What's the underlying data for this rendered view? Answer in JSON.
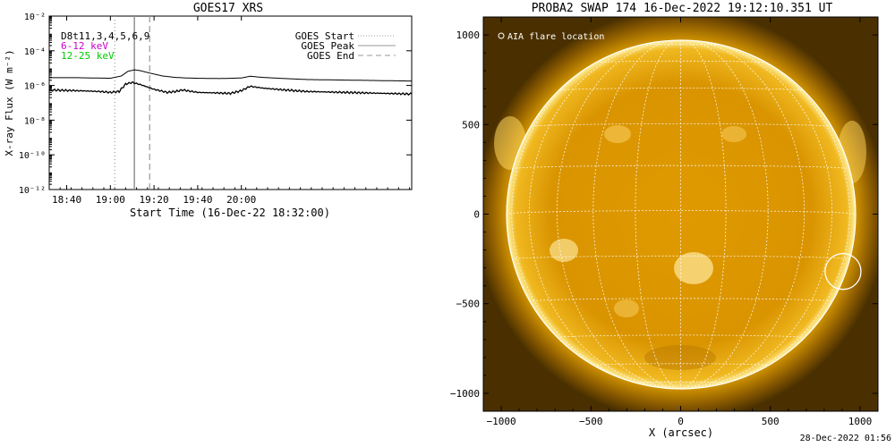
{
  "goes_panel": {
    "title": "GOES17 XRS",
    "ylabel": "X-ray Flux (W m⁻²)",
    "xlabel": "Start Time (16-Dec-22 18:32:00)",
    "instrument_label": "D8t11,3,4,5,6,9",
    "channel_labels": [
      "6-12 keV",
      "12-25 keV"
    ],
    "legend": [
      "GOES Start",
      "GOES Peak",
      "GOES End"
    ],
    "colors": {
      "channel_6_12": "#cc00cc",
      "channel_12_25": "#00cc00",
      "curves": "#000000"
    }
  },
  "swap_panel": {
    "title": "PROBA2 SWAP 174 16-Dec-2022 19:12:10.351 UT",
    "xlabel": "X (arcsec)",
    "flare_legend": "AIA flare location",
    "colors": {
      "sun_core": "#e8a800",
      "corona": "#7a4a00",
      "grid": "#ffffff"
    }
  },
  "footer": "28-Dec-2022 01:56",
  "chart_data": [
    {
      "type": "line",
      "title": "GOES17 XRS",
      "xlabel": "Start Time (16-Dec-22 18:32:00)",
      "ylabel": "X-ray Flux (W m⁻²)",
      "y_scale": "log",
      "xlim": [
        "18:32",
        "21:18"
      ],
      "ylim": [
        1e-12,
        0.01
      ],
      "x_ticks": [
        "18:40",
        "19:00",
        "19:20",
        "19:40",
        "20:00"
      ],
      "y_ticks": [
        "10⁻¹²",
        "10⁻¹⁰",
        "10⁻⁸",
        "10⁻⁶",
        "10⁻⁴",
        "10⁻²"
      ],
      "vertical_lines": {
        "GOES Start": "19:02",
        "GOES Peak": "19:11",
        "GOES End": "19:18"
      },
      "legend_position": "top-right",
      "series": [
        {
          "name": "6-12 keV",
          "x": [
            "18:32",
            "18:45",
            "19:00",
            "19:05",
            "19:08",
            "19:11",
            "19:14",
            "19:18",
            "19:24",
            "19:30",
            "19:35",
            "19:40",
            "19:50",
            "20:00",
            "20:04",
            "20:10",
            "20:20",
            "20:30",
            "21:18"
          ],
          "y": [
            2.8e-06,
            2.8e-06,
            2.6e-06,
            3.5e-06,
            6.5e-06,
            8e-06,
            7e-06,
            5.2e-06,
            3.5e-06,
            2.9e-06,
            2.7e-06,
            2.6e-06,
            2.5e-06,
            2.7e-06,
            3.4e-06,
            2.9e-06,
            2.5e-06,
            2.2e-06,
            1.8e-06
          ]
        },
        {
          "name": "12-25 keV",
          "x": [
            "18:32",
            "18:45",
            "18:55",
            "19:00",
            "19:04",
            "19:07",
            "19:10",
            "19:14",
            "19:20",
            "19:26",
            "19:30",
            "19:33",
            "19:40",
            "19:55",
            "20:00",
            "20:04",
            "20:10",
            "20:20",
            "20:30",
            "21:18"
          ],
          "y": [
            5.5e-07,
            5e-07,
            4.5e-07,
            4e-07,
            4.5e-07,
            1.2e-06,
            1.5e-06,
            1.1e-06,
            6e-07,
            4e-07,
            4.5e-07,
            5.5e-07,
            4e-07,
            3.5e-07,
            5e-07,
            9e-07,
            7e-07,
            5.5e-07,
            4.5e-07,
            3.2e-07
          ]
        }
      ]
    },
    {
      "type": "heatmap",
      "title": "PROBA2 SWAP 174 16-Dec-2022 19:12:10.351 UT",
      "xlabel": "X (arcsec)",
      "xlim": [
        -1100,
        1100
      ],
      "ylim": [
        -1100,
        1100
      ],
      "x_ticks": [
        -1000,
        -500,
        0,
        500,
        1000
      ],
      "y_ticks": [
        -1000,
        -500,
        0,
        500,
        1000
      ],
      "solar_radius_arcsec": 975,
      "flare_location_arcsec": {
        "x": 905,
        "y": -320,
        "radius": 100
      }
    }
  ]
}
